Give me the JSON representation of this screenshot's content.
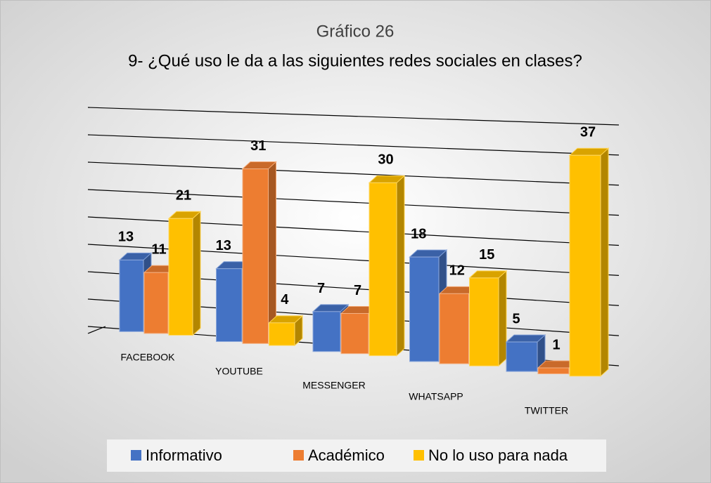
{
  "chart_data": {
    "type": "bar3d",
    "title": "Gráfico 26",
    "subtitle": "9- ¿Qué uso le da a las siguientes redes sociales en clases?",
    "categories": [
      "FACEBOOK",
      "YOUTUBE",
      "MESSENGER",
      "WHATSAPP",
      "TWITTER"
    ],
    "series": [
      {
        "name": "Informativo",
        "color": "#4472c4",
        "values": [
          13,
          13,
          7,
          18,
          5
        ]
      },
      {
        "name": "Académico",
        "color": "#ed7d31",
        "values": [
          11,
          31,
          7,
          12,
          1
        ]
      },
      {
        "name": "No lo uso para nada",
        "color": "#ffc000",
        "values": [
          21,
          4,
          30,
          15,
          37
        ]
      }
    ],
    "ylim": [
      0,
      40
    ],
    "yticks": [
      0,
      5,
      10,
      15,
      20,
      25,
      30,
      35,
      40
    ],
    "grid": true,
    "legend": "bottom"
  }
}
